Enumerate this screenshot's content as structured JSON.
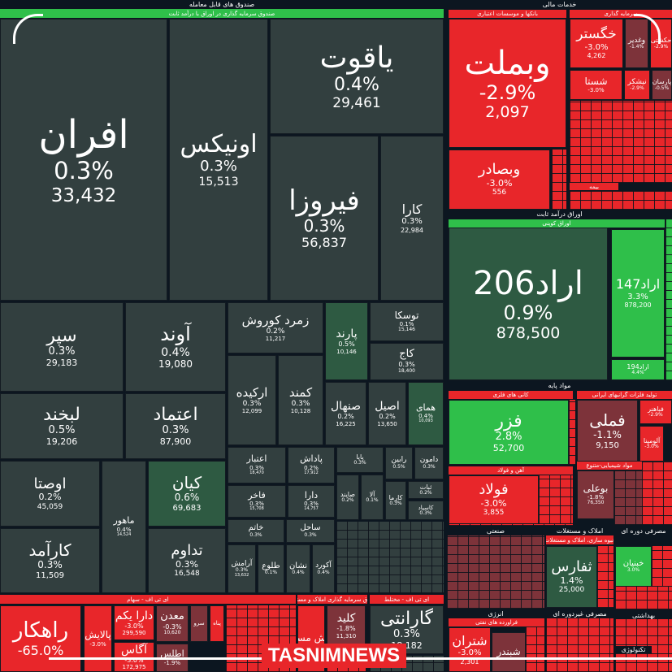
{
  "palette": {
    "dark": "#323f3f",
    "darkgreen": "#2e5a42",
    "green": "#2fbf4a",
    "red": "#e8262a",
    "maroon": "#7d333a",
    "header": "#0c1620"
  },
  "headers": [
    {
      "text": "صندوق های قابل معامله",
      "color": "header"
    },
    {
      "text": "صندوق سرمایه گذاری در اوراق با درآمد ثابت",
      "color": "green"
    },
    {
      "text": "خدمات مالی",
      "color": "header"
    },
    {
      "text": "بانکها و موسسات اعتباری",
      "color": "red"
    },
    {
      "text": "سرمایه گذاری",
      "color": "red"
    },
    {
      "text": "اوراق درآمد ثابت",
      "color": "header"
    },
    {
      "text": "اوراق کوپنی",
      "color": "green"
    },
    {
      "text": "مواد پایه",
      "color": "header"
    },
    {
      "text": "کانی های فلزی",
      "color": "red"
    },
    {
      "text": "تولید فلزات گرانبهای ایرانی",
      "color": "red"
    },
    {
      "text": "آهن و فولاد",
      "color": "red"
    },
    {
      "text": "مواد شیمیایی-متنوع",
      "color": "red"
    },
    {
      "text": "صنعتی",
      "color": "header"
    },
    {
      "text": "املاک و مستغلات",
      "color": "header"
    },
    {
      "text": "مصرفی دوره ای",
      "color": "header"
    },
    {
      "text": "انبوه سازی، املاک و مستغلات",
      "color": "red"
    },
    {
      "text": "انرژی",
      "color": "header"
    },
    {
      "text": "فراورده های نفتی",
      "color": "red"
    },
    {
      "text": "مصرفی غیردوره ای",
      "color": "header"
    },
    {
      "text": "بهداشتی",
      "color": "header"
    },
    {
      "text": "تکنولوژی",
      "color": "header"
    },
    {
      "text": "ای تی اف - سهام",
      "color": "red"
    },
    {
      "text": "صندوق سرمایه گذاری املاک و مستغلات",
      "color": "red"
    },
    {
      "text": "ای تی اف - مختلط",
      "color": "red"
    },
    {
      "text": "بیمه",
      "color": "red"
    }
  ],
  "tiles": [
    {
      "sym": "افران",
      "pct": "0.3%",
      "vol": "33,432",
      "color": "dark"
    },
    {
      "sym": "اونیکس",
      "pct": "0.3%",
      "vol": "15,513",
      "color": "dark"
    },
    {
      "sym": "یاقوت",
      "pct": "0.4%",
      "vol": "29,461",
      "color": "dark"
    },
    {
      "sym": "فیروزا",
      "pct": "0.3%",
      "vol": "56,837",
      "color": "dark"
    },
    {
      "sym": "کارا",
      "pct": "0.3%",
      "vol": "22,984",
      "color": "dark"
    },
    {
      "sym": "سپر",
      "pct": "0.3%",
      "vol": "29,183",
      "color": "dark"
    },
    {
      "sym": "آوند",
      "pct": "0.4%",
      "vol": "19,080",
      "color": "dark"
    },
    {
      "sym": "زمرد کوروش",
      "pct": "0.2%",
      "vol": "11,217",
      "color": "dark"
    },
    {
      "sym": "پارند",
      "pct": "0.5%",
      "vol": "10,146",
      "color": "darkgreen"
    },
    {
      "sym": "توسکا",
      "pct": "0.1%",
      "vol": "15,146",
      "color": "dark"
    },
    {
      "sym": "کاج",
      "pct": "0.3%",
      "vol": "18,400",
      "color": "dark"
    },
    {
      "sym": "ارکیده",
      "pct": "0.3%",
      "vol": "12,099",
      "color": "dark"
    },
    {
      "sym": "کمند",
      "pct": "0.3%",
      "vol": "10,128",
      "color": "dark"
    },
    {
      "sym": "صنهال",
      "pct": "0.2%",
      "vol": "16,225",
      "color": "dark"
    },
    {
      "sym": "اصیل",
      "pct": "0.2%",
      "vol": "13,650",
      "color": "dark"
    },
    {
      "sym": "همای",
      "pct": "0.4%",
      "vol": "10,093",
      "color": "darkgreen"
    },
    {
      "sym": "لبخند",
      "pct": "0.5%",
      "vol": "19,206",
      "color": "dark"
    },
    {
      "sym": "اعتماد",
      "pct": "0.3%",
      "vol": "87,900",
      "color": "dark"
    },
    {
      "sym": "اوصتا",
      "pct": "0.2%",
      "vol": "45,059",
      "color": "dark"
    },
    {
      "sym": "کارآمد",
      "pct": "0.3%",
      "vol": "11,509",
      "color": "dark"
    },
    {
      "sym": "ماهور",
      "pct": "0.4%",
      "vol": "14,524",
      "color": "dark"
    },
    {
      "sym": "کیان",
      "pct": "0.6%",
      "vol": "69,683",
      "color": "darkgreen"
    },
    {
      "sym": "تداوم",
      "pct": "0.3%",
      "vol": "16,548",
      "color": "dark"
    },
    {
      "sym": "اعتبار",
      "pct": "0.3%",
      "vol": "18,470",
      "color": "dark"
    },
    {
      "sym": "پاداش",
      "pct": "0.2%",
      "vol": "17,912",
      "color": "dark"
    },
    {
      "sym": "فاخر",
      "pct": "0.3%",
      "vol": "15,708",
      "color": "dark"
    },
    {
      "sym": "دارا",
      "pct": "0.3%",
      "vol": "14,757",
      "color": "dark"
    },
    {
      "sym": "خاتم",
      "pct": "0.3%",
      "vol": "",
      "color": "dark"
    },
    {
      "sym": "ساحل",
      "pct": "0.3%",
      "vol": "",
      "color": "dark"
    },
    {
      "sym": "آرامش",
      "pct": "0.3%",
      "vol": "13,632",
      "color": "dark"
    },
    {
      "sym": "طلوع",
      "pct": "0.1%",
      "vol": "",
      "color": "dark"
    },
    {
      "sym": "نشان",
      "pct": "0.4%",
      "vol": "",
      "color": "dark"
    },
    {
      "sym": "آکورد",
      "pct": "0.4%",
      "vol": "",
      "color": "dark"
    },
    {
      "sym": "پایا",
      "pct": "0.3%",
      "vol": "",
      "color": "dark"
    },
    {
      "sym": "رابین",
      "pct": "0.5%",
      "vol": "",
      "color": "dark"
    },
    {
      "sym": "دامون",
      "pct": "0.3%",
      "vol": "",
      "color": "dark"
    },
    {
      "sym": "صایند",
      "pct": "0.2%",
      "vol": "",
      "color": "dark"
    },
    {
      "sym": "آلا",
      "pct": "0.1%",
      "vol": "",
      "color": "dark"
    },
    {
      "sym": "کارما",
      "pct": "0.3%",
      "vol": "",
      "color": "dark"
    },
    {
      "sym": "ثبات",
      "pct": "0.2%",
      "vol": "",
      "color": "dark"
    },
    {
      "sym": "کاسپاد",
      "pct": "0.3%",
      "vol": "",
      "color": "dark"
    },
    {
      "sym": "وبملت",
      "pct": "-2.9%",
      "vol": "2,097",
      "color": "red"
    },
    {
      "sym": "وبصادر",
      "pct": "-3.0%",
      "vol": "556",
      "color": "red"
    },
    {
      "sym": "خگستر",
      "pct": "-3.0%",
      "vol": "4,262",
      "color": "red"
    },
    {
      "sym": "وغدیر",
      "pct": "-1.4%",
      "vol": "",
      "color": "maroon"
    },
    {
      "sym": "حکشتی",
      "pct": "-2.9%",
      "vol": "",
      "color": "red"
    },
    {
      "sym": "شستا",
      "pct": "-3.0%",
      "vol": "",
      "color": "red"
    },
    {
      "sym": "نیشکر",
      "pct": "-2.9%",
      "vol": "",
      "color": "red"
    },
    {
      "sym": "پارسان",
      "pct": "-0.5%",
      "vol": "",
      "color": "maroon"
    },
    {
      "sym": "اراد206",
      "pct": "0.9%",
      "vol": "878,500",
      "color": "darkgreen"
    },
    {
      "sym": "اراد147",
      "pct": "3.3%",
      "vol": "878,200",
      "color": "green"
    },
    {
      "sym": "اراد194",
      "pct": "4.4%",
      "vol": "",
      "color": "green"
    },
    {
      "sym": "فزر",
      "pct": "2.8%",
      "vol": "52,700",
      "color": "green"
    },
    {
      "sym": "فولاد",
      "pct": "-3.0%",
      "vol": "3,855",
      "color": "red"
    },
    {
      "sym": "فملی",
      "pct": "-1.1%",
      "vol": "9,150",
      "color": "maroon"
    },
    {
      "sym": "فباهنر",
      "pct": "-2.9%",
      "vol": "",
      "color": "red"
    },
    {
      "sym": "آلومینا",
      "pct": "-3.0%",
      "vol": "",
      "color": "red"
    },
    {
      "sym": "بوعلی",
      "pct": "-1.8%",
      "vol": "76,350",
      "color": "maroon"
    },
    {
      "sym": "ثفارس",
      "pct": "1.4%",
      "vol": "25,000",
      "color": "darkgreen"
    },
    {
      "sym": "خبنیان",
      "pct": "3.0%",
      "vol": "",
      "color": "green"
    },
    {
      "sym": "شتران",
      "pct": "-3.0%",
      "vol": "2,301",
      "color": "red"
    },
    {
      "sym": "شبندر",
      "pct": "",
      "vol": "",
      "color": "maroon"
    },
    {
      "sym": "راهکار",
      "pct": "-65.0%",
      "vol": "",
      "color": "red"
    },
    {
      "sym": "پالایش",
      "pct": "-3.0%",
      "vol": "",
      "color": "red"
    },
    {
      "sym": "دارا یکم",
      "pct": "-3.0%",
      "vol": "299,590",
      "color": "red"
    },
    {
      "sym": "آگاس",
      "pct": "-3.0%",
      "vol": "172,975",
      "color": "red"
    },
    {
      "sym": "معدن",
      "pct": "-0.3%",
      "vol": "10,620",
      "color": "maroon"
    },
    {
      "sym": "اطلس",
      "pct": "-1.9%",
      "vol": "",
      "color": "maroon"
    },
    {
      "sym": "سرو",
      "pct": "",
      "vol": "",
      "color": "maroon"
    },
    {
      "sym": "پناه",
      "pct": "",
      "vol": "",
      "color": "red"
    },
    {
      "sym": "ارزش مسکن",
      "pct": "",
      "vol": "",
      "color": "red"
    },
    {
      "sym": "کلید",
      "pct": "-1.8%",
      "vol": "11,310",
      "color": "maroon"
    },
    {
      "sym": "گارانتی",
      "pct": "0.3%",
      "vol": "18,182",
      "color": "dark"
    }
  ],
  "watermark": {
    "text": "TASNIMNEWS"
  }
}
